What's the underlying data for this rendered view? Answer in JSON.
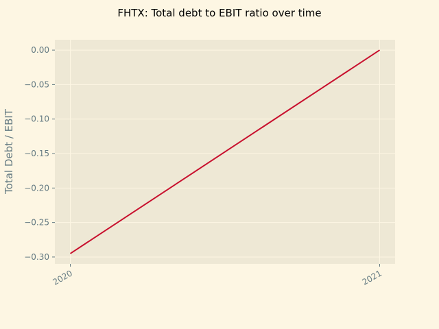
{
  "chart_data": {
    "type": "line",
    "title": "FHTX: Total debt to EBIT ratio over time",
    "xlabel": "",
    "ylabel": "Total Debt / EBIT",
    "x": [
      "2020",
      "2021"
    ],
    "series": [
      {
        "values": [
          -0.295,
          0.0
        ]
      }
    ],
    "xlim": [
      "2020",
      "2021"
    ],
    "ylim": [
      -0.31,
      0.015
    ],
    "yticks": [
      0.0,
      -0.05,
      -0.1,
      -0.15,
      -0.2,
      -0.25,
      -0.3
    ],
    "ytick_labels": [
      "0.00",
      "−0.05",
      "−0.10",
      "−0.15",
      "−0.20",
      "−0.25",
      "−0.30"
    ],
    "xtick_labels": [
      "2020",
      "2021"
    ],
    "grid": true,
    "colors": {
      "background": "#fdf6e3",
      "plot_area": "#eee8d5",
      "line": "#c8102e",
      "grid": "#fdf6e3",
      "tick_text": "#657b83"
    }
  }
}
